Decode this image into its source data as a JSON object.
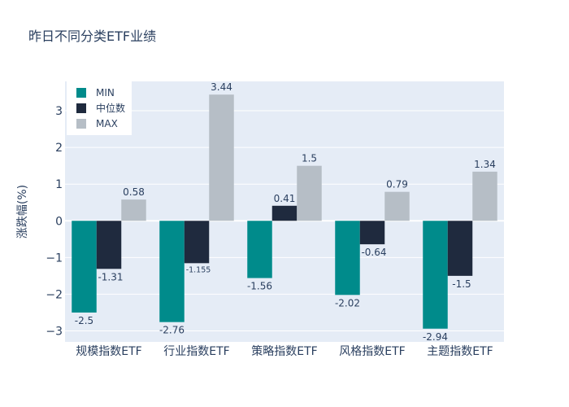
{
  "chart_data": {
    "type": "bar",
    "title": "昨日不同分类ETF业绩",
    "xlabel": "",
    "ylabel": "涨跌幅(%)",
    "categories": [
      "规模指数ETF",
      "行业指数ETF",
      "策略指数ETF",
      "风格指数ETF",
      "主题指数ETF"
    ],
    "series": [
      {
        "name": "MIN",
        "values": [
          -2.5,
          -2.76,
          -1.56,
          -2.02,
          -2.94
        ],
        "labels": [
          "-2.5",
          "-2.76",
          "-1.56",
          "-2.02",
          "-2.94"
        ],
        "color": "#008B8B"
      },
      {
        "name": "中位数",
        "values": [
          -1.31,
          -1.155,
          0.41,
          -0.64,
          -1.5
        ],
        "labels": [
          "-1.31",
          "-1.155",
          "0.41",
          "-0.64",
          "-1.5"
        ],
        "color": "#1F2A3E"
      },
      {
        "name": "MAX",
        "values": [
          0.58,
          3.44,
          1.5,
          0.79,
          1.34
        ],
        "labels": [
          "0.58",
          "3.44",
          "1.5",
          "0.79",
          "1.34"
        ],
        "color": "#B6BEC6"
      }
    ],
    "ylim": [
      -3.3,
      3.8
    ],
    "yticks": [
      -3,
      -2,
      -1,
      0,
      1,
      2,
      3
    ],
    "ytick_labels": [
      "−3",
      "−2",
      "−1",
      "0",
      "1",
      "2",
      "3"
    ],
    "grid": true,
    "legend": "top-left",
    "colors": {
      "plot_bg": "#E5ECF6",
      "grid": "#FFFFFF",
      "text": "#2A3F5F",
      "title": "#2A3F5F"
    }
  }
}
